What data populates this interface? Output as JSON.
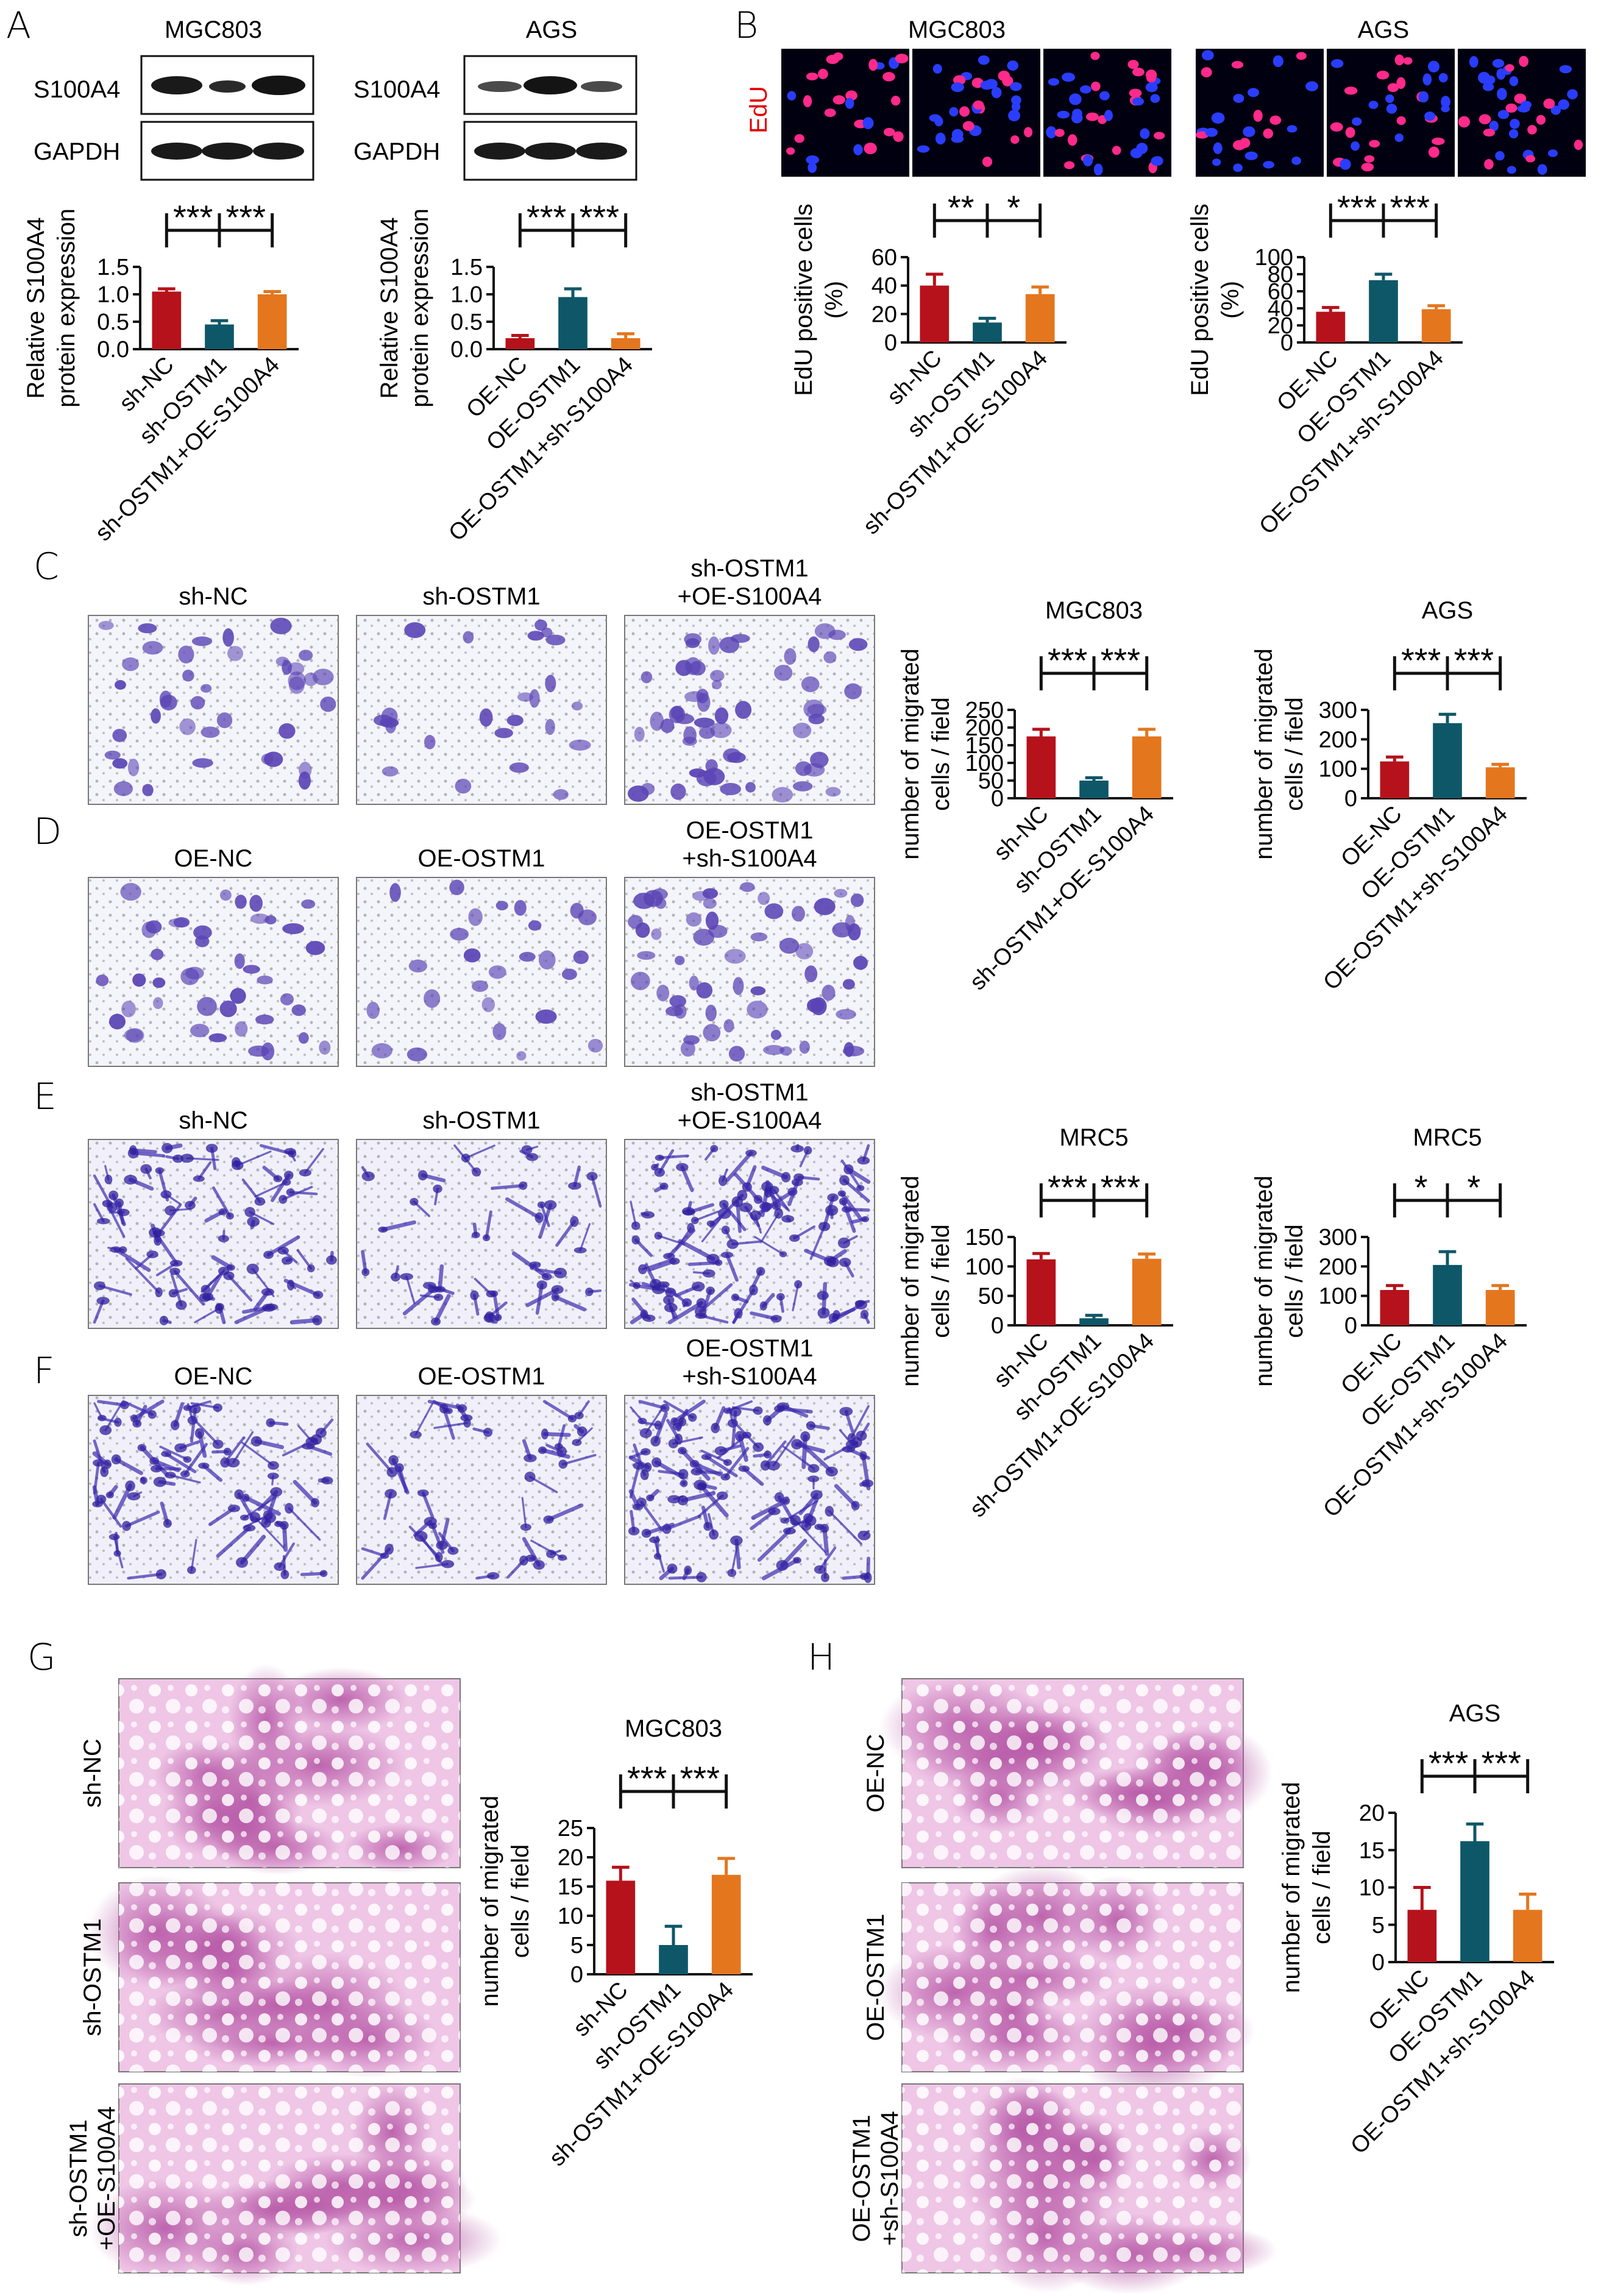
{
  "panels": {
    "A": {
      "letter": "A",
      "blots": [
        {
          "cell": "MGC803",
          "rows": [
            "S100A4",
            "GAPDH"
          ]
        },
        {
          "cell": "AGS",
          "rows": [
            "S100A4",
            "GAPDH"
          ]
        }
      ]
    },
    "B": {
      "letter": "B",
      "cells": [
        "MGC803",
        "AGS"
      ],
      "stain": "EdU"
    },
    "C": {
      "letter": "C",
      "labels": [
        "sh-NC",
        "sh-OSTM1",
        "sh-OSTM1\n+OE-S100A4"
      ]
    },
    "D": {
      "letter": "D",
      "labels": [
        "OE-NC",
        "OE-OSTM1",
        "OE-OSTM1\n+sh-S100A4"
      ]
    },
    "E": {
      "letter": "E",
      "labels": [
        "sh-NC",
        "sh-OSTM1",
        "sh-OSTM1\n+OE-S100A4"
      ]
    },
    "F": {
      "letter": "F",
      "labels": [
        "OE-NC",
        "OE-OSTM1",
        "OE-OSTM1\n+sh-S100A4"
      ]
    },
    "G": {
      "letter": "G",
      "labels": [
        "sh-NC",
        "sh-OSTM1",
        "sh-OSTM1\n+OE-S100A4"
      ]
    },
    "H": {
      "letter": "H",
      "labels": [
        "OE-NC",
        "OE-OSTM1",
        "OE-OSTM1\n+sh-S100A4"
      ]
    }
  },
  "colors": {
    "red": "#b5121b",
    "teal": "#0e5768",
    "orange": "#e4761e",
    "stain_purple": "#6a4fb8",
    "he_pink": "#d77fc4"
  },
  "chart_data": [
    {
      "id": "A1",
      "type": "bar",
      "title": "",
      "ylabel": "Relative S100A4\nprotein expression",
      "categories": [
        "sh-NC",
        "sh-OSTM1",
        "sh-OSTM1+OE-S100A4"
      ],
      "values": [
        1.05,
        0.45,
        1.0
      ],
      "errors": [
        0.05,
        0.07,
        0.05
      ],
      "ylim": [
        0,
        1.5
      ],
      "yticks": [
        "0.0",
        "0.5",
        "1.0",
        "1.5"
      ],
      "sig": [
        "***",
        "***"
      ]
    },
    {
      "id": "A2",
      "type": "bar",
      "title": "",
      "ylabel": "Relative S100A4\nprotein expression",
      "categories": [
        "OE-NC",
        "OE-OSTM1",
        "OE-OSTM1+sh-S100A4"
      ],
      "values": [
        0.2,
        0.95,
        0.2
      ],
      "errors": [
        0.05,
        0.15,
        0.08
      ],
      "ylim": [
        0,
        1.5
      ],
      "yticks": [
        "0.0",
        "0.5",
        "1.0",
        "1.5"
      ],
      "sig": [
        "***",
        "***"
      ]
    },
    {
      "id": "B1",
      "type": "bar",
      "title": "",
      "ylabel": "EdU positive cells\n(%)",
      "categories": [
        "sh-NC",
        "sh-OSTM1",
        "sh-OSTM1+OE-S100A4"
      ],
      "values": [
        40,
        14,
        34
      ],
      "errors": [
        8,
        3,
        5
      ],
      "ylim": [
        0,
        60
      ],
      "yticks": [
        "0",
        "20",
        "40",
        "60"
      ],
      "sig": [
        "**",
        "*"
      ]
    },
    {
      "id": "B2",
      "type": "bar",
      "title": "",
      "ylabel": "EdU positive cells\n(%)",
      "categories": [
        "OE-NC",
        "OE-OSTM1",
        "OE-OSTM1+sh-S100A4"
      ],
      "values": [
        36,
        73,
        39
      ],
      "errors": [
        5,
        7,
        4
      ],
      "ylim": [
        0,
        100
      ],
      "yticks": [
        "0",
        "20",
        "40",
        "60",
        "80",
        "100"
      ],
      "sig": [
        "***",
        "***"
      ]
    },
    {
      "id": "CD1",
      "type": "bar",
      "title": "MGC803",
      "ylabel": "number of migrated\ncells / field",
      "categories": [
        "sh-NC",
        "sh-OSTM1",
        "sh-OSTM1+OE-S100A4"
      ],
      "values": [
        175,
        50,
        175
      ],
      "errors": [
        20,
        8,
        20
      ],
      "ylim": [
        0,
        250
      ],
      "yticks": [
        "0",
        "50",
        "100",
        "150",
        "200",
        "250"
      ],
      "sig": [
        "***",
        "***"
      ]
    },
    {
      "id": "CD2",
      "type": "bar",
      "title": "AGS",
      "ylabel": "number of migrated\ncells / field",
      "categories": [
        "OE-NC",
        "OE-OSTM1",
        "OE-OSTM1+sh-S100A4"
      ],
      "values": [
        125,
        255,
        105
      ],
      "errors": [
        15,
        30,
        10
      ],
      "ylim": [
        0,
        300
      ],
      "yticks": [
        "0",
        "100",
        "200",
        "300"
      ],
      "sig": [
        "***",
        "***"
      ]
    },
    {
      "id": "EF1",
      "type": "bar",
      "title": "MRC5",
      "ylabel": "number of migrated\ncells / field",
      "categories": [
        "sh-NC",
        "sh-OSTM1",
        "sh-OSTM1+OE-S100A4"
      ],
      "values": [
        112,
        12,
        113
      ],
      "errors": [
        10,
        5,
        8
      ],
      "ylim": [
        0,
        150
      ],
      "yticks": [
        "0",
        "50",
        "100",
        "150"
      ],
      "sig": [
        "***",
        "***"
      ]
    },
    {
      "id": "EF2",
      "type": "bar",
      "title": "MRC5",
      "ylabel": "number of migrated\ncells / field",
      "categories": [
        "OE-NC",
        "OE-OSTM1",
        "OE-OSTM1+sh-S100A4"
      ],
      "values": [
        120,
        205,
        120
      ],
      "errors": [
        15,
        45,
        15
      ],
      "ylim": [
        0,
        300
      ],
      "yticks": [
        "0",
        "100",
        "200",
        "300"
      ],
      "sig": [
        "*",
        "*"
      ]
    },
    {
      "id": "G1",
      "type": "bar",
      "title": "MGC803",
      "ylabel": "number of migrated\ncells / field",
      "categories": [
        "sh-NC",
        "sh-OSTM1",
        "sh-OSTM1+OE-S100A4"
      ],
      "values": [
        16,
        5,
        17
      ],
      "errors": [
        2.3,
        3.2,
        2.8
      ],
      "ylim": [
        0,
        25
      ],
      "yticks": [
        "0",
        "5",
        "10",
        "15",
        "20",
        "25"
      ],
      "sig": [
        "***",
        "***"
      ]
    },
    {
      "id": "H1",
      "type": "bar",
      "title": "AGS",
      "ylabel": "number of migrated\ncells / field",
      "categories": [
        "OE-NC",
        "OE-OSTM1",
        "OE-OSTM1+sh-S100A4"
      ],
      "values": [
        7,
        16.2,
        7
      ],
      "errors": [
        3,
        2.3,
        2.1
      ],
      "ylim": [
        0,
        20
      ],
      "yticks": [
        "0",
        "5",
        "10",
        "15",
        "20"
      ],
      "sig": [
        "***",
        "***"
      ]
    }
  ]
}
